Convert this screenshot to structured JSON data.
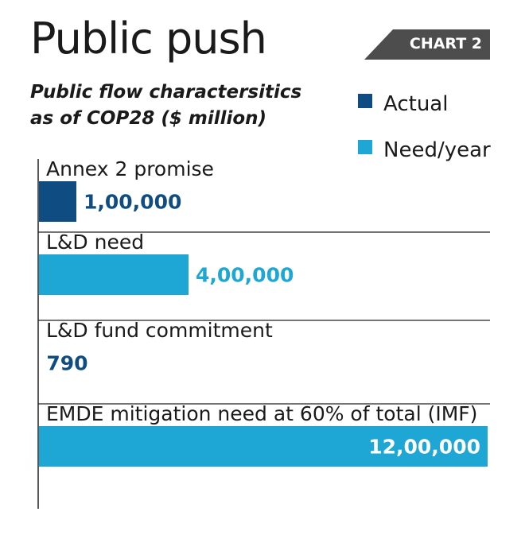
{
  "header": {
    "title": "Public push",
    "tag": "CHART 2",
    "subtitle_line1": "Public flow charactersitics",
    "subtitle_line2": "as of COP28 ($ million)"
  },
  "colors": {
    "actual": "#0f4c81",
    "need": "#1ea6d4",
    "text": "#1a1a1a",
    "tag_bg": "#4d4d4d"
  },
  "legend": [
    {
      "label": "Actual",
      "color": "#0f4c81"
    },
    {
      "label": "Need/year",
      "color": "#1ea6d4"
    }
  ],
  "chart_data": {
    "type": "bar",
    "orientation": "horizontal",
    "title": "Public push",
    "subtitle": "Public flow charactersitics as of COP28 ($ million)",
    "categories": [
      "Annex 2 promise",
      "L&D need",
      "L&D fund commitment",
      "EMDE mitigation need at 60% of total (IMF)"
    ],
    "values": [
      100000,
      400000,
      790,
      1200000
    ],
    "value_labels": [
      "1,00,000",
      "4,00,000",
      "790",
      "12,00,000"
    ],
    "series_kind": [
      "Actual",
      "Need/year",
      "Actual",
      "Need/year"
    ],
    "xlim": [
      0,
      1200000
    ],
    "grid": false,
    "legend_position": "top-right"
  }
}
